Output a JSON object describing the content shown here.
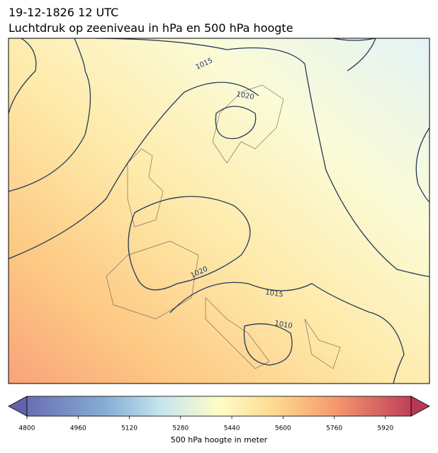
{
  "title": [
    "19-12-1826 12 UTC",
    "Luchtdruk op zeeniveau in hPa en 500 hPa hoogte"
  ],
  "contour_labels": [
    "1015",
    "1020",
    "1020",
    "1015",
    "1010"
  ],
  "colorbar": {
    "label": "500 hPa hoogte in meter",
    "lim": [
      4800,
      6000
    ],
    "ticks": [
      4800,
      4960,
      5120,
      5280,
      5440,
      5600,
      5760,
      5920
    ]
  }
}
